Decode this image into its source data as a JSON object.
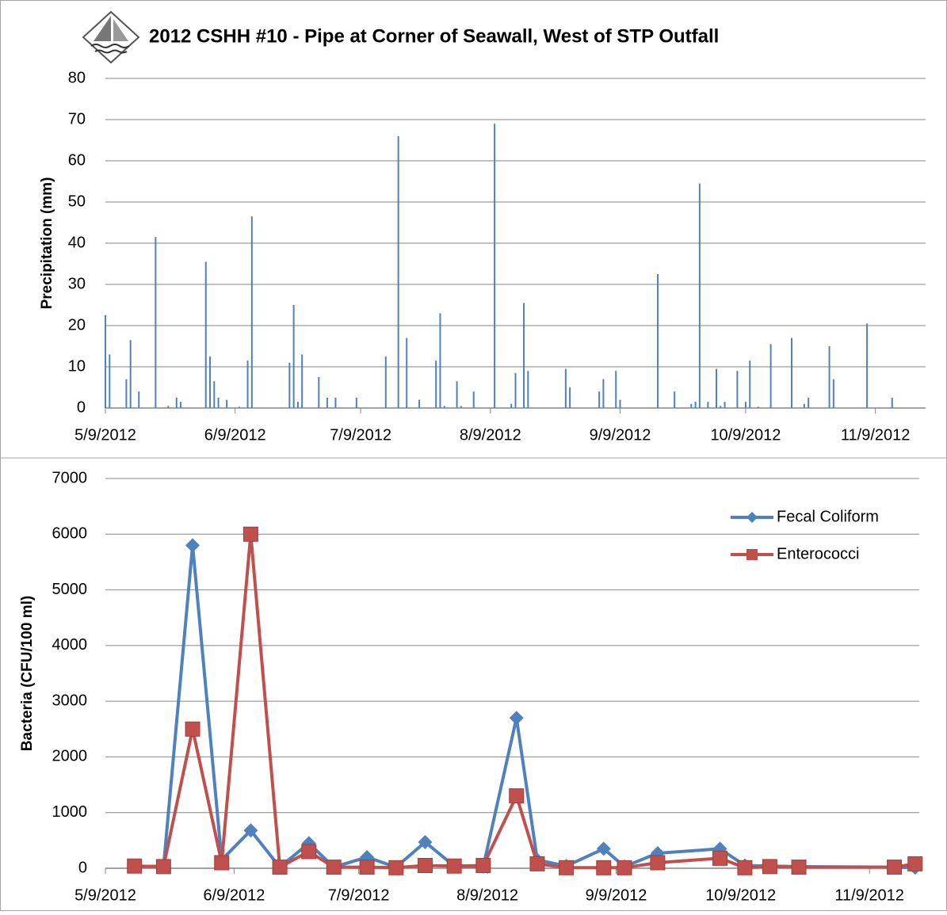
{
  "chart_data": [
    {
      "type": "bar",
      "title": "2012 CSHH #10 - Pipe at Corner of Seawall, West of STP Outfall",
      "ylabel": "Precipitation (mm)",
      "color": "#4f81bd",
      "x": [
        "5/9/2012",
        "5/10/2012",
        "5/14/2012",
        "5/15/2012",
        "5/17/2012",
        "5/21/2012",
        "5/24/2012",
        "5/26/2012",
        "5/27/2012",
        "6/2/2012",
        "6/3/2012",
        "6/4/2012",
        "6/5/2012",
        "6/7/2012",
        "6/10/2012",
        "6/12/2012",
        "6/13/2012",
        "6/22/2012",
        "6/23/2012",
        "6/24/2012",
        "6/25/2012",
        "6/29/2012",
        "7/1/2012",
        "7/3/2012",
        "7/8/2012",
        "7/15/2012",
        "7/18/2012",
        "7/20/2012",
        "7/23/2012",
        "7/27/2012",
        "7/28/2012",
        "7/29/2012",
        "8/1/2012",
        "8/2/2012",
        "8/5/2012",
        "8/10/2012",
        "8/14/2012",
        "8/15/2012",
        "8/17/2012",
        "8/18/2012",
        "8/27/2012",
        "8/28/2012",
        "9/4/2012",
        "9/5/2012",
        "9/8/2012",
        "9/9/2012",
        "9/18/2012",
        "9/22/2012",
        "9/26/2012",
        "9/27/2012",
        "9/28/2012",
        "9/30/2012",
        "10/2/2012",
        "10/3/2012",
        "10/4/2012",
        "10/7/2012",
        "10/9/2012",
        "10/10/2012",
        "10/12/2012",
        "10/15/2012",
        "10/20/2012",
        "10/23/2012",
        "10/24/2012",
        "10/29/2012",
        "10/30/2012",
        "11/7/2012",
        "11/13/2012"
      ],
      "values": [
        22.5,
        13,
        7,
        16.5,
        4,
        41.5,
        0.5,
        2.5,
        1.5,
        35.5,
        12.5,
        6.5,
        2.5,
        2,
        0.3,
        11.5,
        46.5,
        11,
        25,
        1.5,
        13,
        7.5,
        2.5,
        2.5,
        2.5,
        12.5,
        66,
        17,
        2,
        11.5,
        23,
        0.5,
        6.5,
        0.5,
        4,
        69,
        1,
        8.5,
        25.5,
        9,
        9.5,
        5,
        4,
        7,
        9,
        2,
        32.5,
        4,
        1,
        1.5,
        54.5,
        1.5,
        9.5,
        0.5,
        1.5,
        9,
        1.5,
        11.5,
        0.3,
        15.5,
        17,
        1,
        2.5,
        15,
        7,
        20.5,
        2.5
      ],
      "xlim": [
        "5/9/2012",
        "11/21/2012"
      ],
      "xticks": [
        "5/9/2012",
        "6/9/2012",
        "7/9/2012",
        "8/9/2012",
        "9/9/2012",
        "10/9/2012",
        "11/9/2012"
      ],
      "ylim": [
        0,
        80
      ],
      "yticks": [
        0,
        10,
        20,
        30,
        40,
        50,
        60,
        70,
        80
      ],
      "grid": true
    },
    {
      "type": "line",
      "ylabel": "Bacteria (CFU/100 ml)",
      "legend": "upper right",
      "x": [
        "5/16/2012",
        "5/23/2012",
        "5/30/2012",
        "6/6/2012",
        "6/13/2012",
        "6/20/2012",
        "6/27/2012",
        "7/3/2012",
        "7/11/2012",
        "7/18/2012",
        "7/25/2012",
        "8/1/2012",
        "8/8/2012",
        "8/16/2012",
        "8/21/2012",
        "8/28/2012",
        "9/6/2012",
        "9/11/2012",
        "9/19/2012",
        "10/4/2012",
        "10/10/2012",
        "10/16/2012",
        "10/23/2012",
        "11/15/2012",
        "11/20/2012"
      ],
      "series": [
        {
          "name": "Fecal Coliform",
          "color": "#4f81bd",
          "marker": "diamond",
          "values": [
            40,
            30,
            5800,
            150,
            680,
            20,
            450,
            20,
            200,
            20,
            470,
            40,
            30,
            2700,
            150,
            40,
            350,
            30,
            270,
            350,
            50,
            40,
            30,
            20,
            10
          ]
        },
        {
          "name": "Enterococci",
          "color": "#c0504d",
          "marker": "square",
          "values": [
            40,
            30,
            2500,
            100,
            6000,
            20,
            300,
            20,
            20,
            10,
            50,
            40,
            50,
            1300,
            80,
            10,
            10,
            10,
            100,
            180,
            10,
            30,
            20,
            20,
            80
          ]
        }
      ],
      "xlim": [
        "5/9/2012",
        "11/21/2012"
      ],
      "xticks": [
        "5/9/2012",
        "6/9/2012",
        "7/9/2012",
        "8/9/2012",
        "9/9/2012",
        "10/9/2012",
        "11/9/2012"
      ],
      "ylim": [
        0,
        7000
      ],
      "yticks": [
        0,
        1000,
        2000,
        3000,
        4000,
        5000,
        6000,
        7000
      ],
      "grid": true
    }
  ]
}
